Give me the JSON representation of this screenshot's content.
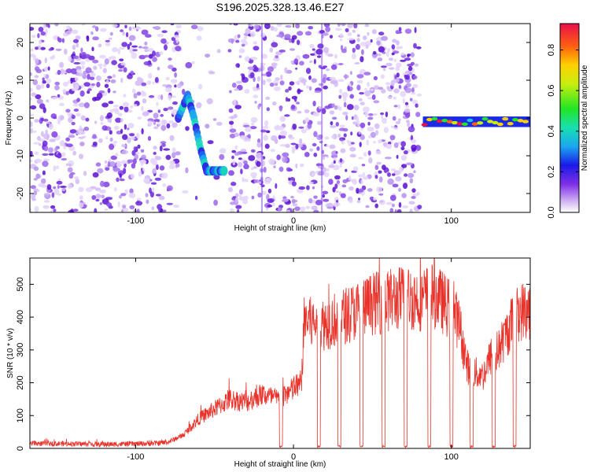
{
  "title": "S196.2025.328.13.46.E27",
  "chart_data": [
    {
      "type": "heatmap",
      "xlabel": "Height of straight line (km)",
      "ylabel": "Frequency (Hz)",
      "xlim": [
        -167,
        150
      ],
      "ylim": [
        -25,
        25
      ],
      "x_ticks": [
        -100,
        0,
        100
      ],
      "y_ticks": [
        20,
        10,
        0,
        -10,
        -20
      ],
      "colorbar": {
        "label": "Normalized spectral amplitude",
        "range": [
          0,
          0.93
        ],
        "ticks": [
          "0.0",
          "0.2",
          "0.4",
          "0.6",
          "0.8"
        ]
      },
      "features": [
        {
          "name": "noise-speckle",
          "x_range": [
            -167,
            80
          ],
          "y_range": [
            -25,
            25
          ],
          "amplitude": 0.2
        },
        {
          "name": "blank-band",
          "x_range": [
            -72,
            -40
          ],
          "y_range": [
            -25,
            25
          ],
          "amplitude": 0.0
        },
        {
          "name": "arc-signal",
          "points": [
            [
              -73,
              0
            ],
            [
              -67,
              6
            ],
            [
              -63,
              0
            ],
            [
              -59,
              -8
            ],
            [
              -55,
              -14
            ],
            [
              -49,
              -14
            ],
            [
              -44,
              -14
            ]
          ],
          "amplitude": 0.55
        },
        {
          "name": "steady-tone",
          "x_range": [
            82,
            150
          ],
          "y_center": -1,
          "amplitude": 0.9
        }
      ]
    },
    {
      "type": "line",
      "xlabel": "Height of straight line (km)",
      "ylabel": "SNR (10 * v/v)",
      "xlim": [
        -167,
        150
      ],
      "ylim": [
        0,
        580
      ],
      "x_ticks": [
        -100,
        0,
        100
      ],
      "y_ticks": [
        0,
        100,
        200,
        300,
        400,
        500
      ],
      "series": [
        {
          "name": "SNR",
          "color": "#e8322a",
          "x": [
            -167,
            -140,
            -120,
            -100,
            -90,
            -80,
            -70,
            -60,
            -50,
            -40,
            -30,
            -20,
            -10,
            0,
            5,
            7,
            10,
            20,
            30,
            40,
            50,
            60,
            70,
            80,
            90,
            100,
            105,
            110,
            115,
            120,
            125,
            130,
            135,
            140,
            145,
            150
          ],
          "values": [
            15,
            14,
            12,
            14,
            15,
            18,
            40,
            90,
            120,
            150,
            140,
            165,
            150,
            180,
            200,
            400,
            380,
            380,
            400,
            420,
            440,
            450,
            460,
            455,
            465,
            420,
            380,
            250,
            230,
            220,
            280,
            300,
            350,
            400,
            420,
            420
          ],
          "dropouts_to_zero_at": [
            -8,
            16,
            29,
            43,
            57,
            71,
            86,
            100,
            113,
            127,
            140
          ]
        }
      ]
    }
  ]
}
